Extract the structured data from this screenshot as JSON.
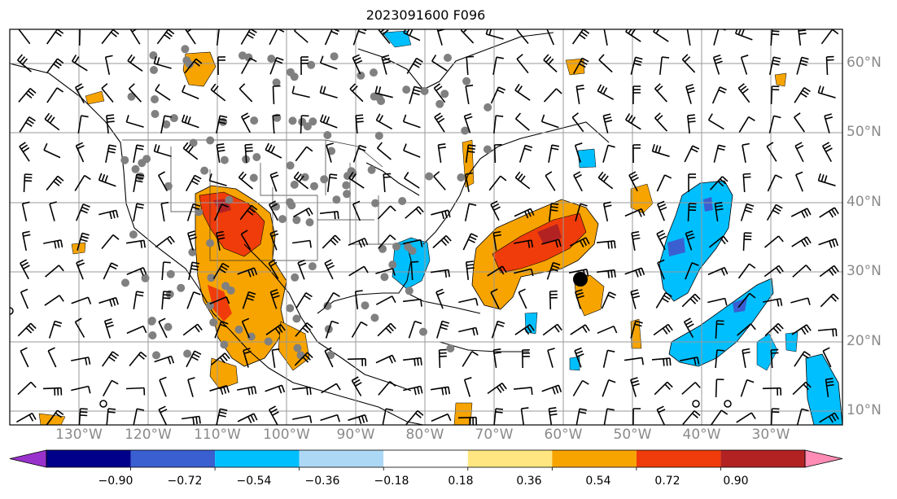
{
  "title": "2023091600 F096",
  "map": {
    "lon_labels": [
      "130°W",
      "120°W",
      "110°W",
      "100°W",
      "90°W",
      "80°W",
      "70°W",
      "60°W",
      "50°W",
      "40°W",
      "30°W"
    ],
    "lat_labels": [
      "60°N",
      "50°N",
      "40°N",
      "30°N",
      "20°N",
      "10°N"
    ],
    "field_colors": {
      "strong_positive": "#b22222",
      "high_positive": "#f03c0a",
      "positive": "#f7a400",
      "weak_positive": "#ffe680",
      "weak_negative": "#add8f5",
      "negative": "#00b4f0",
      "mid_negative": "#3a5fd0",
      "strong_negative": "#00008b",
      "extreme_negative": "#9932cc",
      "extreme_positive": "#ff8cb4"
    }
  },
  "colorbar": {
    "ticks": [
      "−0.90",
      "−0.72",
      "−0.54",
      "−0.36",
      "−0.18",
      "0.18",
      "0.36",
      "0.54",
      "0.72",
      "0.90"
    ],
    "colors": [
      "#9932cc",
      "#00008b",
      "#3a5fd0",
      "#00bfff",
      "#add8f5",
      "#ffffff",
      "#ffe680",
      "#f7a400",
      "#f03c0a",
      "#b22222",
      "#ff8cb4"
    ]
  }
}
